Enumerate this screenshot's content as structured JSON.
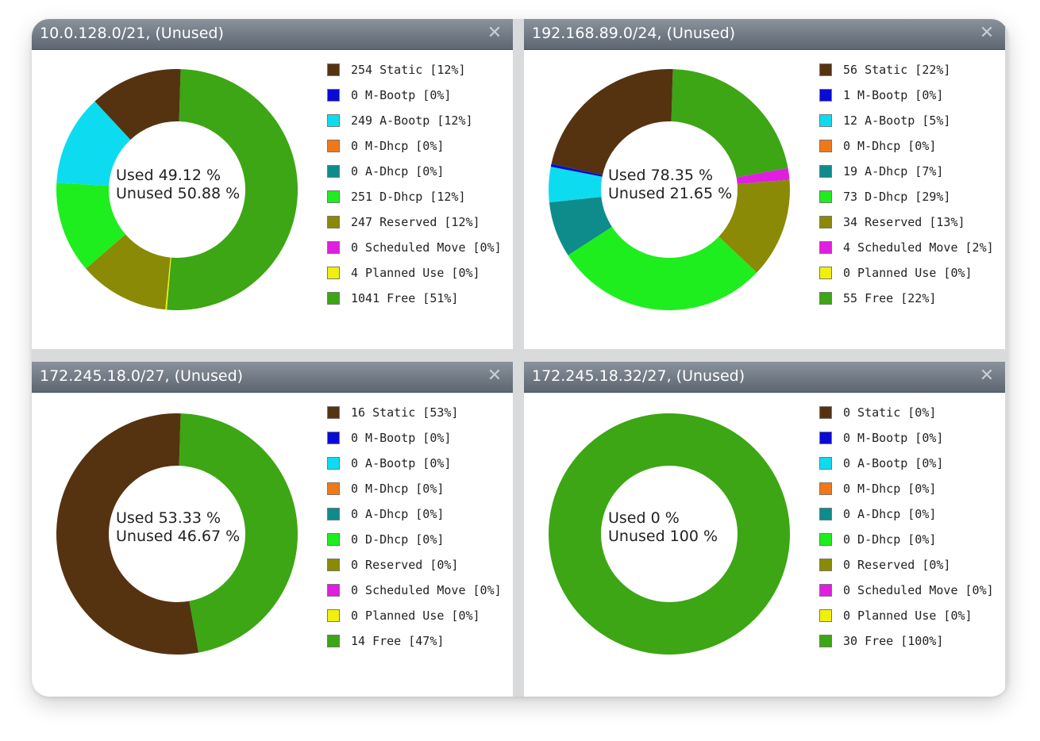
{
  "colors": {
    "static": "#553311",
    "m_bootp": "#0a0ad6",
    "a_bootp": "#0ddcf0",
    "m_dhcp": "#f07818",
    "a_dhcp": "#0e8c8c",
    "d_dhcp": "#1eee1e",
    "reserved": "#8a8a06",
    "scheduled_move": "#e01ee0",
    "planned_use": "#f0f00e",
    "free": "#3ca614"
  },
  "panels": [
    {
      "title": "10.0.128.0/21, (Unused)",
      "close_icon": "✕",
      "used_label": "Used 49.12 %",
      "unused_label": "Unused 50.88 %",
      "legend": [
        {
          "key": "static",
          "count": 254,
          "text": "254 Static [12%]"
        },
        {
          "key": "m_bootp",
          "count": 0,
          "text": "0 M-Bootp [0%]"
        },
        {
          "key": "a_bootp",
          "count": 249,
          "text": "249 A-Bootp [12%]"
        },
        {
          "key": "m_dhcp",
          "count": 0,
          "text": "0 M-Dhcp [0%]"
        },
        {
          "key": "a_dhcp",
          "count": 0,
          "text": "0 A-Dhcp [0%]"
        },
        {
          "key": "d_dhcp",
          "count": 251,
          "text": "251 D-Dhcp [12%]"
        },
        {
          "key": "reserved",
          "count": 247,
          "text": "247 Reserved [12%]"
        },
        {
          "key": "scheduled_move",
          "count": 0,
          "text": "0 Scheduled Move [0%]"
        },
        {
          "key": "planned_use",
          "count": 4,
          "text": "4 Planned Use [0%]"
        },
        {
          "key": "free",
          "count": 1041,
          "text": "1041 Free [51%]"
        }
      ]
    },
    {
      "title": "192.168.89.0/24, (Unused)",
      "close_icon": "✕",
      "used_label": "Used 78.35 %",
      "unused_label": "Unused 21.65 %",
      "legend": [
        {
          "key": "static",
          "count": 56,
          "text": "56 Static [22%]"
        },
        {
          "key": "m_bootp",
          "count": 1,
          "text": "1 M-Bootp [0%]"
        },
        {
          "key": "a_bootp",
          "count": 12,
          "text": "12 A-Bootp [5%]"
        },
        {
          "key": "m_dhcp",
          "count": 0,
          "text": "0 M-Dhcp [0%]"
        },
        {
          "key": "a_dhcp",
          "count": 19,
          "text": "19 A-Dhcp [7%]"
        },
        {
          "key": "d_dhcp",
          "count": 73,
          "text": "73 D-Dhcp [29%]"
        },
        {
          "key": "reserved",
          "count": 34,
          "text": "34 Reserved [13%]"
        },
        {
          "key": "scheduled_move",
          "count": 4,
          "text": "4 Scheduled Move [2%]"
        },
        {
          "key": "planned_use",
          "count": 0,
          "text": "0 Planned Use [0%]"
        },
        {
          "key": "free",
          "count": 55,
          "text": "55 Free [22%]"
        }
      ]
    },
    {
      "title": "172.245.18.0/27, (Unused)",
      "close_icon": "✕",
      "used_label": "Used 53.33 %",
      "unused_label": "Unused 46.67 %",
      "legend": [
        {
          "key": "static",
          "count": 16,
          "text": "16 Static [53%]"
        },
        {
          "key": "m_bootp",
          "count": 0,
          "text": "0 M-Bootp [0%]"
        },
        {
          "key": "a_bootp",
          "count": 0,
          "text": "0 A-Bootp [0%]"
        },
        {
          "key": "m_dhcp",
          "count": 0,
          "text": "0 M-Dhcp [0%]"
        },
        {
          "key": "a_dhcp",
          "count": 0,
          "text": "0 A-Dhcp [0%]"
        },
        {
          "key": "d_dhcp",
          "count": 0,
          "text": "0 D-Dhcp [0%]"
        },
        {
          "key": "reserved",
          "count": 0,
          "text": "0 Reserved [0%]"
        },
        {
          "key": "scheduled_move",
          "count": 0,
          "text": "0 Scheduled Move [0%]"
        },
        {
          "key": "planned_use",
          "count": 0,
          "text": "0 Planned Use [0%]"
        },
        {
          "key": "free",
          "count": 14,
          "text": "14 Free [47%]"
        }
      ]
    },
    {
      "title": "172.245.18.32/27, (Unused)",
      "close_icon": "✕",
      "used_label": "Used 0 %",
      "unused_label": "Unused 100 %",
      "legend": [
        {
          "key": "static",
          "count": 0,
          "text": "0 Static [0%]"
        },
        {
          "key": "m_bootp",
          "count": 0,
          "text": "0 M-Bootp [0%]"
        },
        {
          "key": "a_bootp",
          "count": 0,
          "text": "0 A-Bootp [0%]"
        },
        {
          "key": "m_dhcp",
          "count": 0,
          "text": "0 M-Dhcp [0%]"
        },
        {
          "key": "a_dhcp",
          "count": 0,
          "text": "0 A-Dhcp [0%]"
        },
        {
          "key": "d_dhcp",
          "count": 0,
          "text": "0 D-Dhcp [0%]"
        },
        {
          "key": "reserved",
          "count": 0,
          "text": "0 Reserved [0%]"
        },
        {
          "key": "scheduled_move",
          "count": 0,
          "text": "0 Scheduled Move [0%]"
        },
        {
          "key": "planned_use",
          "count": 0,
          "text": "0 Planned Use [0%]"
        },
        {
          "key": "free",
          "count": 30,
          "text": "30 Free [100%]"
        }
      ]
    }
  ]
}
